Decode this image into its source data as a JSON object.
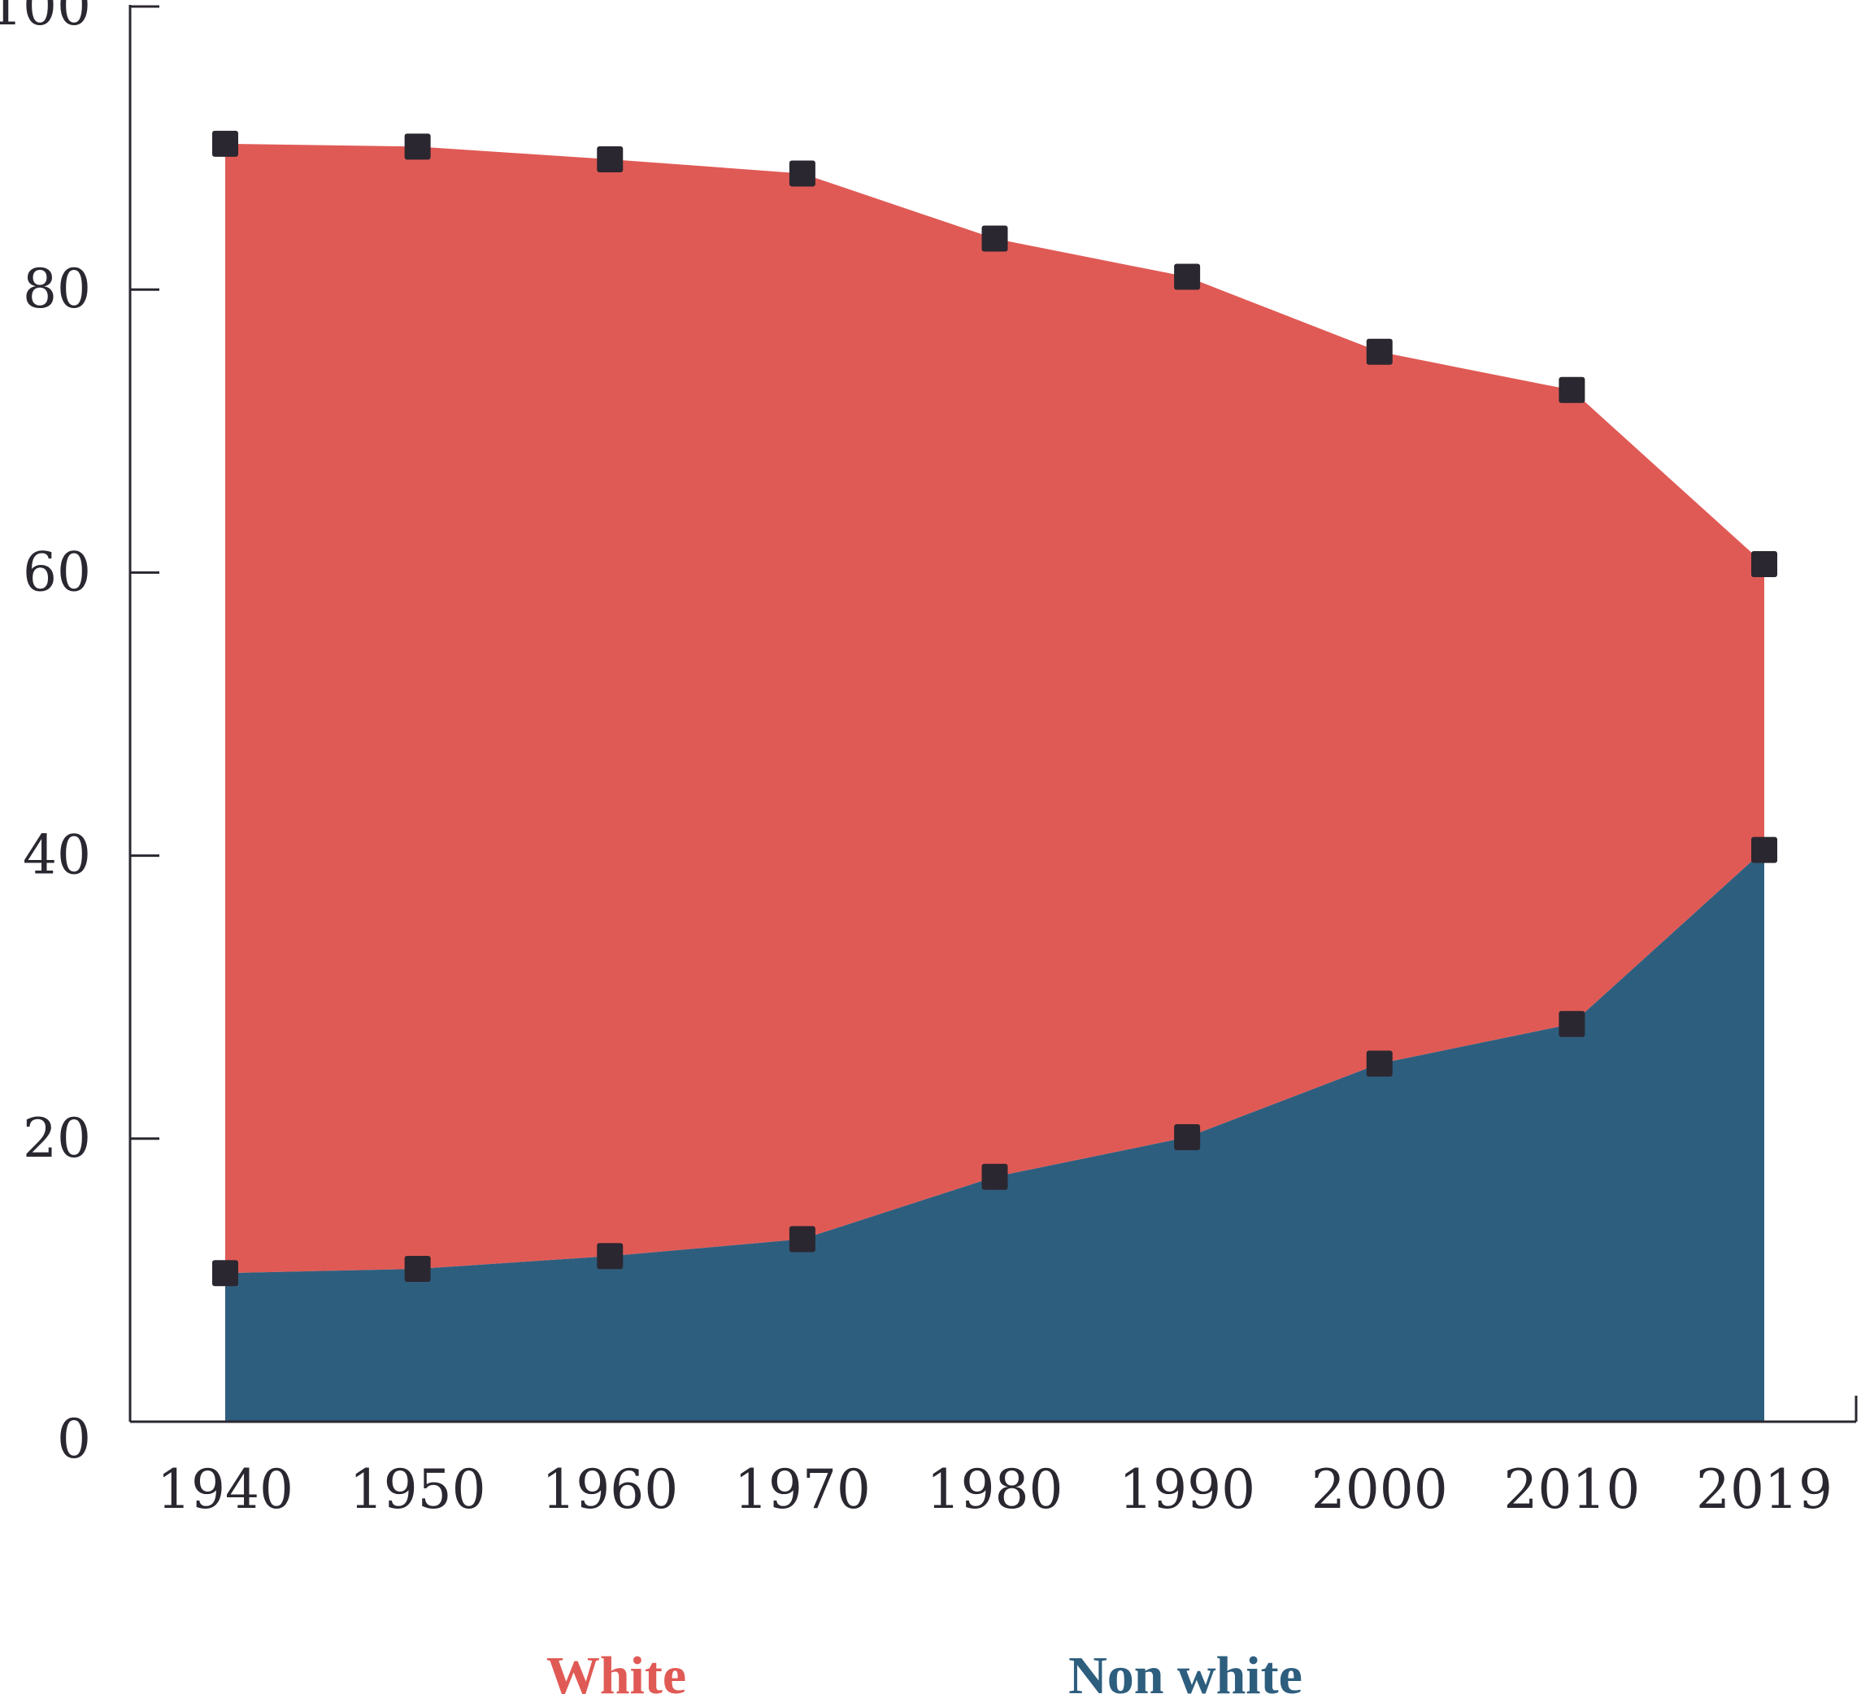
{
  "chart_data": {
    "type": "area",
    "stacked": true,
    "x": [
      "1940",
      "1950",
      "1960",
      "1970",
      "1980",
      "1990",
      "2000",
      "2010",
      "2019"
    ],
    "series": [
      {
        "name": "Non white",
        "color": "#2e5e7e",
        "values": [
          10.5,
          10.8,
          11.7,
          12.9,
          17.3,
          20.1,
          25.3,
          28.1,
          40.4
        ]
      },
      {
        "name": "White",
        "color": "#e05a55",
        "values": [
          89.8,
          89.3,
          88.3,
          87.1,
          82.8,
          80.7,
          75.1,
          72.4,
          60.3
        ]
      }
    ],
    "upper_edge_values": [
      90.3,
      90.1,
      89.2,
      88.2,
      83.6,
      80.9,
      75.6,
      72.9,
      60.6
    ],
    "ylim": [
      0,
      100
    ],
    "yticks": [
      "0",
      "20",
      "40",
      "60",
      "80",
      "100"
    ],
    "xlabel": "",
    "ylabel": "",
    "title": "",
    "legend": {
      "position": "bottom",
      "items": [
        {
          "label": "White",
          "color": "#e05a55"
        },
        {
          "label": "Non white",
          "color": "#2e5e7e"
        }
      ]
    },
    "marker": {
      "shape": "square",
      "color": "#2b2730"
    },
    "axis_color": "#2b2730"
  }
}
